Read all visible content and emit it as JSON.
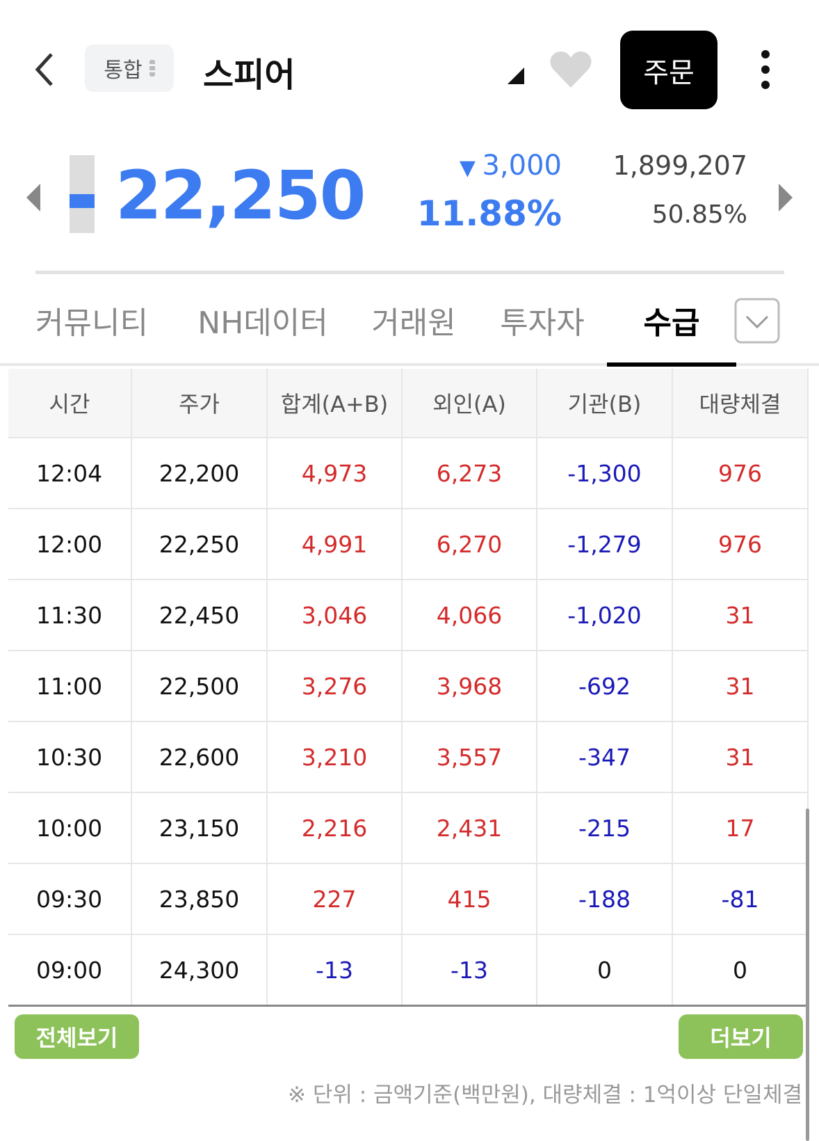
{
  "header": {
    "badge": "통합",
    "title": "스피어",
    "order_button": "주문"
  },
  "quote": {
    "price": "22,250",
    "change": "3,000",
    "change_rate": "11.88%",
    "volume": "1,899,207",
    "volume_rate": "50.85%"
  },
  "tabs": {
    "items": [
      "커뮤니티",
      "NH데이터",
      "거래원",
      "투자자",
      "수급"
    ],
    "active": 4
  },
  "table": {
    "columns": [
      "시간",
      "주가",
      "합계(A+B)",
      "외인(A)",
      "기관(B)",
      "대량체결"
    ],
    "rows": [
      [
        "12:04",
        "22,200",
        "4,973",
        "6,273",
        "-1,300",
        "976"
      ],
      [
        "12:00",
        "22,250",
        "4,991",
        "6,270",
        "-1,279",
        "976"
      ],
      [
        "11:30",
        "22,450",
        "3,046",
        "4,066",
        "-1,020",
        "31"
      ],
      [
        "11:00",
        "22,500",
        "3,276",
        "3,968",
        "-692",
        "31"
      ],
      [
        "10:30",
        "22,600",
        "3,210",
        "3,557",
        "-347",
        "31"
      ],
      [
        "10:00",
        "23,150",
        "2,216",
        "2,431",
        "-215",
        "17"
      ],
      [
        "09:30",
        "23,850",
        "227",
        "415",
        "-188",
        "-81"
      ],
      [
        "09:00",
        "24,300",
        "-13",
        "-13",
        "0",
        "0"
      ]
    ]
  },
  "buttons": {
    "all": "전체보기",
    "more": "더보기"
  },
  "note": "※ 단위 : 금액기준(백만원), 대량체결 : 1억이상 단일체결"
}
